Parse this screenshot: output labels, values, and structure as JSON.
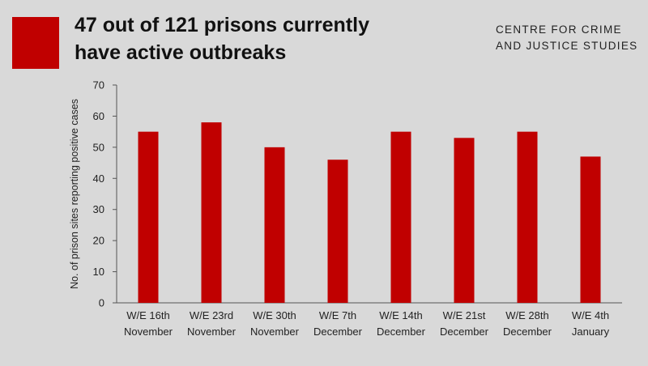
{
  "header": {
    "title_line1": "47 out of 121 prisons currently",
    "title_line2": "have active outbreaks",
    "brand_line1": "CENTRE FOR CRIME",
    "brand_line2": "AND JUSTICE STUDIES"
  },
  "colors": {
    "bar": "#c00000",
    "background": "#d9d9d9",
    "accent_square": "#c00000"
  },
  "chart_data": {
    "type": "bar",
    "title": "47 out of 121 prisons currently have active outbreaks",
    "ylabel": "No. of prison sites reporting positive cases",
    "xlabel": "",
    "ylim": [
      0,
      70
    ],
    "yticks": [
      0,
      10,
      20,
      30,
      40,
      50,
      60,
      70
    ],
    "grid": false,
    "legend": "none",
    "categories": [
      [
        "W/E 16th",
        "November"
      ],
      [
        "W/E 23rd",
        "November"
      ],
      [
        "W/E 30th",
        "November"
      ],
      [
        "W/E 7th",
        "December"
      ],
      [
        "W/E 14th",
        "December"
      ],
      [
        "W/E 21st",
        "December"
      ],
      [
        "W/E 28th",
        "December"
      ],
      [
        "W/E 4th",
        "January"
      ]
    ],
    "values": [
      55,
      58,
      50,
      46,
      55,
      53,
      55,
      47
    ]
  }
}
